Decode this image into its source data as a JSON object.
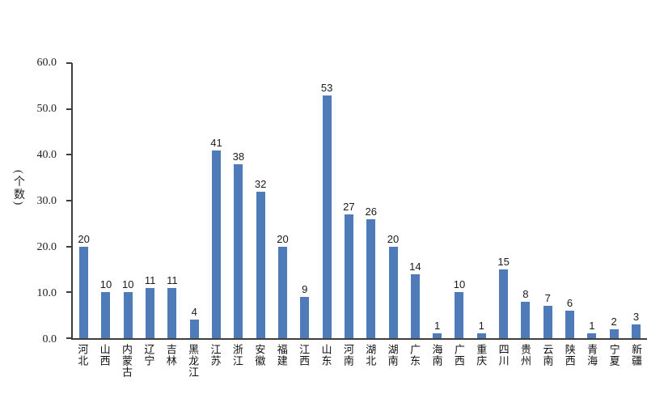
{
  "chart_data": {
    "type": "bar",
    "title": "",
    "xlabel": "",
    "ylabel": "(个数)",
    "ylim": [
      0,
      60
    ],
    "ytick_labels": [
      "0.0",
      "10.0",
      "20.0",
      "30.0",
      "40.0",
      "50.0",
      "60.0"
    ],
    "ytick_values": [
      0,
      10,
      20,
      30,
      40,
      50,
      60
    ],
    "grid": "off",
    "legend": "none",
    "bar_color": "#4f7cb8",
    "categories": [
      "河北",
      "山西",
      "内蒙古",
      "辽宁",
      "吉林",
      "黑龙江",
      "江苏",
      "浙江",
      "安徽",
      "福建",
      "江西",
      "山东",
      "河南",
      "湖北",
      "湖南",
      "广东",
      "海南",
      "广西",
      "重庆",
      "四川",
      "贵州",
      "云南",
      "陕西",
      "青海",
      "宁夏",
      "新疆"
    ],
    "values": [
      20,
      10,
      10,
      11,
      11,
      4,
      41,
      38,
      32,
      20,
      9,
      53,
      27,
      26,
      20,
      14,
      1,
      10,
      1,
      15,
      8,
      7,
      6,
      1,
      2,
      3
    ]
  }
}
